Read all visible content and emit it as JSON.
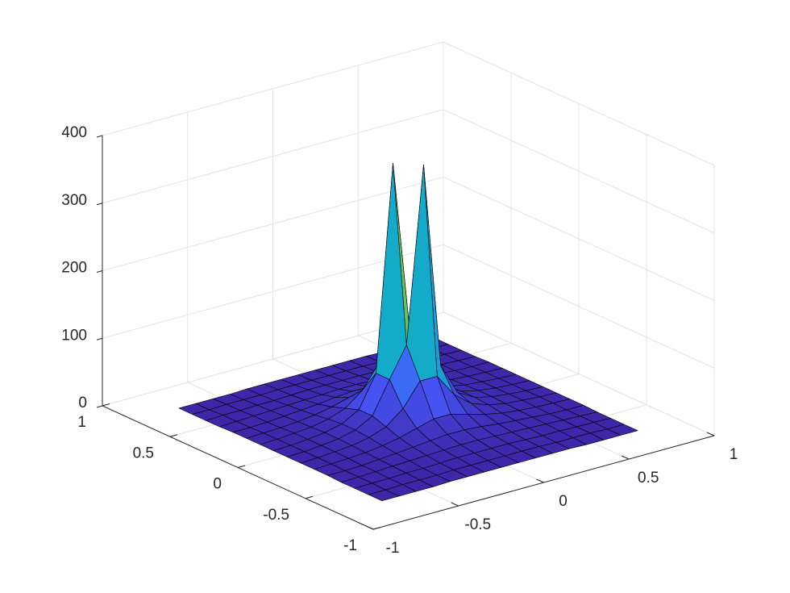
{
  "chart_data": {
    "type": "surface",
    "x": [
      -0.75,
      -0.65,
      -0.55,
      -0.45,
      -0.35,
      -0.25,
      -0.15,
      -0.05,
      0.05,
      0.15,
      0.25,
      0.35,
      0.45,
      0.55,
      0.65,
      0.75
    ],
    "y": [
      -0.75,
      -0.65,
      -0.55,
      -0.45,
      -0.35,
      -0.25,
      -0.15,
      -0.05,
      0.05,
      0.15,
      0.25,
      0.35,
      0.45,
      0.55,
      0.65,
      0.75
    ],
    "z": [
      [
        2,
        2,
        2,
        2,
        3,
        3,
        3,
        3,
        3,
        3,
        3,
        3,
        2,
        2,
        2,
        2
      ],
      [
        2,
        2,
        3,
        3,
        3,
        4,
        4,
        4,
        4,
        4,
        4,
        3,
        3,
        3,
        2,
        2
      ],
      [
        2,
        3,
        3,
        4,
        4,
        5,
        6,
        6,
        6,
        6,
        5,
        4,
        4,
        3,
        3,
        2
      ],
      [
        2,
        3,
        4,
        5,
        6,
        7,
        8,
        9,
        9,
        8,
        7,
        6,
        5,
        4,
        3,
        2
      ],
      [
        3,
        3,
        4,
        6,
        8,
        10,
        13,
        15,
        15,
        13,
        10,
        8,
        6,
        4,
        3,
        3
      ],
      [
        3,
        4,
        5,
        7,
        10,
        15,
        22,
        29,
        29,
        22,
        15,
        10,
        7,
        5,
        4,
        3
      ],
      [
        3,
        4,
        6,
        8,
        13,
        22,
        42,
        76,
        76,
        42,
        22,
        13,
        8,
        6,
        4,
        3
      ],
      [
        3,
        4,
        6,
        9,
        15,
        29,
        76,
        120,
        380,
        76,
        29,
        15,
        9,
        6,
        4,
        3
      ],
      [
        3,
        4,
        6,
        9,
        15,
        29,
        76,
        380,
        120,
        76,
        29,
        15,
        9,
        6,
        4,
        3
      ],
      [
        3,
        4,
        6,
        8,
        13,
        22,
        42,
        76,
        76,
        42,
        22,
        13,
        8,
        6,
        4,
        3
      ],
      [
        3,
        4,
        5,
        7,
        10,
        15,
        22,
        29,
        29,
        22,
        15,
        10,
        7,
        5,
        4,
        3
      ],
      [
        3,
        3,
        4,
        6,
        8,
        10,
        13,
        15,
        15,
        13,
        10,
        8,
        6,
        4,
        3,
        3
      ],
      [
        2,
        3,
        4,
        5,
        6,
        7,
        8,
        9,
        9,
        8,
        7,
        6,
        5,
        4,
        3,
        2
      ],
      [
        2,
        3,
        3,
        4,
        4,
        5,
        6,
        6,
        6,
        6,
        5,
        4,
        4,
        3,
        3,
        2
      ],
      [
        2,
        2,
        3,
        3,
        3,
        4,
        4,
        4,
        4,
        4,
        4,
        3,
        3,
        3,
        2,
        2
      ],
      [
        2,
        2,
        2,
        2,
        3,
        3,
        3,
        3,
        3,
        3,
        3,
        3,
        2,
        2,
        2,
        2
      ]
    ],
    "xlim": [
      -1,
      1
    ],
    "ylim": [
      -1,
      1
    ],
    "zlim": [
      0,
      400
    ],
    "xticks": [
      -1,
      -0.5,
      0,
      0.5,
      1
    ],
    "yticks": [
      -1,
      -0.5,
      0,
      0.5,
      1
    ],
    "zticks": [
      0,
      100,
      200,
      300,
      400
    ],
    "grid": true,
    "colormap": "parula",
    "edge_color": "#000000"
  }
}
